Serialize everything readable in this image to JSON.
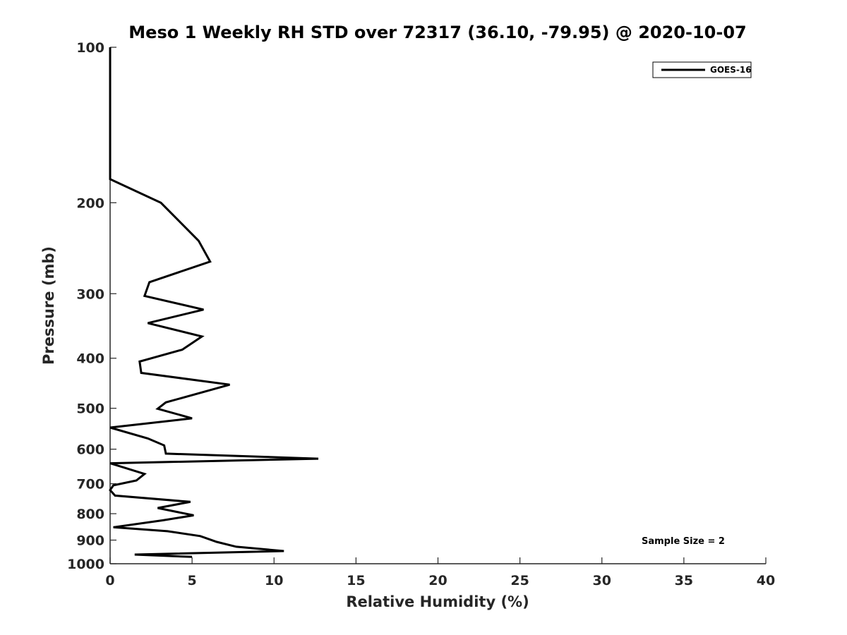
{
  "chart_data": {
    "type": "line",
    "title": "Meso 1 Weekly RH STD over 72317 (36.10, -79.95) @ 2020-10-07",
    "xlabel": "Relative Humidity (%)",
    "ylabel": "Pressure (mb)",
    "xlim": [
      0,
      40
    ],
    "ylim": [
      100,
      1000
    ],
    "y_scale": "log",
    "y_reversed": true,
    "x_ticks": [
      "0",
      "5",
      "10",
      "15",
      "20",
      "25",
      "30",
      "35",
      "40"
    ],
    "y_ticks": [
      "100",
      "200",
      "300",
      "400",
      "500",
      "600",
      "700",
      "800",
      "900",
      "1000"
    ],
    "grid": false,
    "legend_position": "top-right",
    "annotation": "Sample Size = 2",
    "series": [
      {
        "name": "GOES-16",
        "color": "#000000",
        "points": [
          {
            "x": 0.0,
            "p": 100
          },
          {
            "x": 0.0,
            "p": 180
          },
          {
            "x": 3.1,
            "p": 200
          },
          {
            "x": 5.4,
            "p": 237
          },
          {
            "x": 6.1,
            "p": 260
          },
          {
            "x": 2.4,
            "p": 285
          },
          {
            "x": 2.1,
            "p": 303
          },
          {
            "x": 5.7,
            "p": 322
          },
          {
            "x": 2.3,
            "p": 342
          },
          {
            "x": 5.6,
            "p": 363
          },
          {
            "x": 4.4,
            "p": 385
          },
          {
            "x": 1.8,
            "p": 406
          },
          {
            "x": 1.9,
            "p": 427
          },
          {
            "x": 7.3,
            "p": 450
          },
          {
            "x": 3.4,
            "p": 487
          },
          {
            "x": 2.9,
            "p": 501
          },
          {
            "x": 5.0,
            "p": 523
          },
          {
            "x": 0.0,
            "p": 545
          },
          {
            "x": 2.3,
            "p": 572
          },
          {
            "x": 3.3,
            "p": 590
          },
          {
            "x": 3.4,
            "p": 612
          },
          {
            "x": 12.7,
            "p": 626
          },
          {
            "x": 0.0,
            "p": 639
          },
          {
            "x": 2.1,
            "p": 670
          },
          {
            "x": 1.6,
            "p": 690
          },
          {
            "x": 0.2,
            "p": 705
          },
          {
            "x": 0.0,
            "p": 720
          },
          {
            "x": 0.3,
            "p": 738
          },
          {
            "x": 4.9,
            "p": 759
          },
          {
            "x": 2.9,
            "p": 780
          },
          {
            "x": 5.1,
            "p": 806
          },
          {
            "x": 3.2,
            "p": 824
          },
          {
            "x": 0.2,
            "p": 850
          },
          {
            "x": 3.5,
            "p": 865
          },
          {
            "x": 5.5,
            "p": 884
          },
          {
            "x": 6.5,
            "p": 907
          },
          {
            "x": 7.7,
            "p": 927
          },
          {
            "x": 10.6,
            "p": 945
          },
          {
            "x": 1.5,
            "p": 960
          },
          {
            "x": 5.0,
            "p": 970
          }
        ]
      }
    ]
  }
}
